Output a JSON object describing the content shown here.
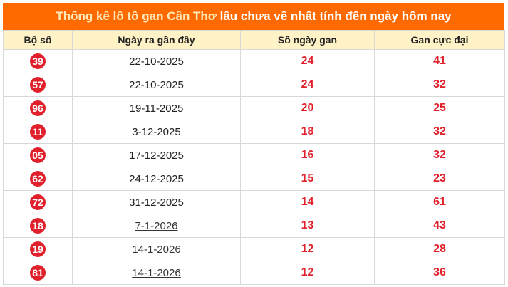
{
  "title": {
    "link_text": "Thống kê lô tô gan Cần Thơ",
    "rest": " lâu chưa về nhất tính đến ngày hôm nay"
  },
  "columns": [
    "Bộ số",
    "Ngày ra gần đây",
    "Số ngày gan",
    "Gan cực đại"
  ],
  "colors": {
    "header": "#ff6a00",
    "accent": "#e0202a",
    "column_header_bg": "#fff2c6"
  },
  "rows": [
    {
      "number": "39",
      "date": "22-10-2025",
      "date_link": false,
      "days": "24",
      "max": "41"
    },
    {
      "number": "57",
      "date": "22-10-2025",
      "date_link": false,
      "days": "24",
      "max": "32"
    },
    {
      "number": "96",
      "date": "19-11-2025",
      "date_link": false,
      "days": "20",
      "max": "25"
    },
    {
      "number": "11",
      "date": "3-12-2025",
      "date_link": false,
      "days": "18",
      "max": "32"
    },
    {
      "number": "05",
      "date": "17-12-2025",
      "date_link": false,
      "days": "16",
      "max": "32"
    },
    {
      "number": "62",
      "date": "24-12-2025",
      "date_link": false,
      "days": "15",
      "max": "23"
    },
    {
      "number": "72",
      "date": "31-12-2025",
      "date_link": false,
      "days": "14",
      "max": "61"
    },
    {
      "number": "18",
      "date": "7-1-2026",
      "date_link": true,
      "days": "13",
      "max": "43"
    },
    {
      "number": "19",
      "date": "14-1-2026",
      "date_link": true,
      "days": "12",
      "max": "28"
    },
    {
      "number": "81",
      "date": "14-1-2026",
      "date_link": true,
      "days": "12",
      "max": "36"
    }
  ]
}
